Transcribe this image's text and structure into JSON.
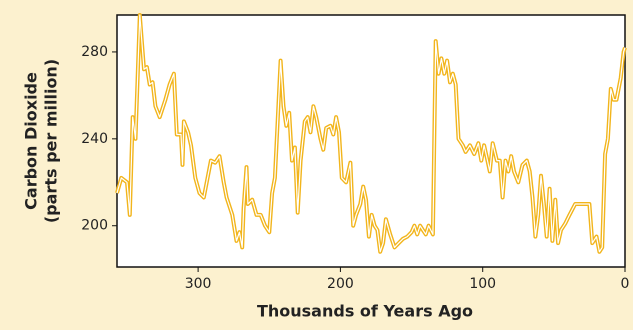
{
  "chart_data": {
    "type": "line",
    "xlabel": "Thousands of Years Ago",
    "ylabel": [
      "Carbon Dioxide",
      "(parts per million)"
    ],
    "x": [
      357,
      354,
      350,
      348,
      346,
      344,
      341,
      338,
      336,
      334,
      332,
      330,
      327,
      323,
      320,
      317,
      315,
      312,
      311,
      310,
      307,
      305,
      302,
      299,
      296,
      291,
      288,
      285,
      282,
      280,
      276,
      273,
      271,
      269,
      268,
      266,
      265,
      262,
      259,
      256,
      253,
      250,
      248,
      246,
      242,
      240,
      238,
      236,
      234,
      232,
      230,
      228,
      225,
      223,
      221,
      219,
      217,
      214,
      212,
      210,
      207,
      205,
      203,
      201,
      199,
      196,
      193,
      191,
      189,
      186,
      184,
      182,
      180,
      178,
      176,
      174,
      172,
      170,
      168,
      165,
      162,
      159,
      156,
      153,
      150,
      148,
      146,
      144,
      142,
      140,
      138,
      135,
      133,
      131,
      129,
      127,
      125,
      123,
      121,
      119,
      117,
      114,
      112,
      109,
      106,
      103,
      101,
      99,
      97,
      95,
      93,
      90,
      88,
      86,
      84,
      82,
      80,
      78,
      75,
      72,
      69,
      67,
      65,
      63,
      61,
      59,
      57,
      55,
      53,
      51,
      49,
      47,
      45,
      42,
      39,
      35,
      30,
      25,
      23,
      20,
      18,
      16,
      14,
      12,
      10,
      8,
      6,
      3,
      1,
      0
    ],
    "series": [
      {
        "color": "#f2b51c",
        "values": [
          215,
          222,
          220,
          205,
          250,
          240,
          297,
          272,
          273,
          265,
          266,
          255,
          250,
          258,
          265,
          270,
          242,
          242,
          228,
          248,
          243,
          237,
          222,
          215,
          213,
          230,
          229,
          232,
          220,
          213,
          205,
          193,
          197,
          190,
          208,
          227,
          210,
          212,
          205,
          205,
          200,
          197,
          215,
          222,
          276,
          255,
          246,
          252,
          230,
          236,
          206,
          230,
          248,
          250,
          243,
          255,
          250,
          240,
          235,
          245,
          246,
          242,
          250,
          243,
          222,
          220,
          229,
          200,
          205,
          210,
          218,
          212,
          195,
          205,
          200,
          198,
          188,
          192,
          203,
          196,
          190,
          192,
          194,
          195,
          197,
          200,
          196,
          200,
          198,
          196,
          200,
          196,
          285,
          270,
          277,
          270,
          276,
          266,
          270,
          265,
          240,
          237,
          234,
          237,
          233,
          238,
          230,
          237,
          231,
          225,
          238,
          230,
          230,
          213,
          230,
          225,
          232,
          225,
          220,
          228,
          230,
          225,
          213,
          195,
          205,
          223,
          210,
          195,
          217,
          193,
          212,
          192,
          198,
          201,
          205,
          210,
          210,
          210,
          192,
          195,
          188,
          190,
          233,
          240,
          263,
          258,
          258,
          268,
          280,
          282
        ]
      }
    ],
    "xlim": [
      357,
      0
    ],
    "ylim": [
      181,
      297
    ],
    "xticks": [
      300,
      200,
      100,
      0
    ],
    "yticks": [
      200,
      240,
      280
    ]
  }
}
